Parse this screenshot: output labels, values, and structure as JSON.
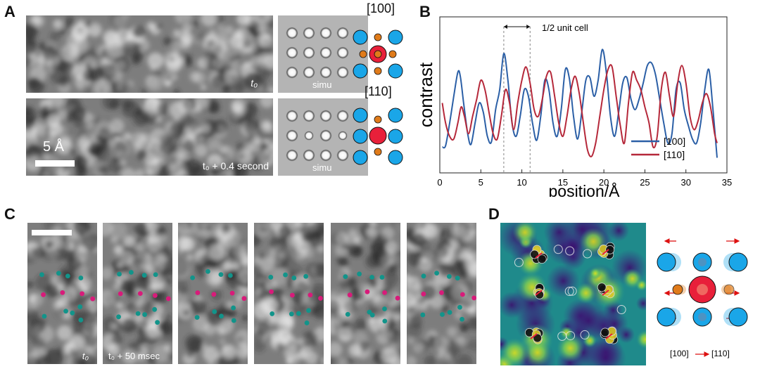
{
  "figure": {
    "panel_a": {
      "letter": "A",
      "top_time": "t₀",
      "bottom_time": "t₀ + 0.4 second",
      "scale_label": "5 Å",
      "sim_label_top": "simu",
      "sim_label_bottom": "simu",
      "zone_top": "[100]",
      "zone_bottom": "[110]"
    },
    "panel_b": {
      "letter": "B",
      "annotation": "1/2 unit cell",
      "ylabel": "contrast",
      "xlabel": "position/Å",
      "legend": [
        "[100]",
        "[110]"
      ]
    },
    "panel_c": {
      "letter": "C",
      "frame_labels": [
        "t₀",
        "t₀ + 50 msec"
      ]
    },
    "panel_d": {
      "letter": "D",
      "transition_from": "[100]",
      "transition_to": "[110]"
    },
    "colors": {
      "series_100": "#2b5fa6",
      "series_110": "#b5283a",
      "cyan_atom": "#1aa6e8",
      "red_atom": "#e8203a",
      "orange_atom": "#e07b1a",
      "teal_dot": "#12948a",
      "magenta_dot": "#d81b7a"
    }
  },
  "chart_data": {
    "type": "line",
    "title": "",
    "xlabel": "position/Å",
    "ylabel": "contrast",
    "xlim": [
      0,
      35
    ],
    "xticks": [
      0,
      5,
      10,
      15,
      20,
      25,
      30,
      35
    ],
    "yticks_shown": false,
    "annotation": {
      "text": "1/2 unit cell",
      "x_start": 7.8,
      "x_end": 11.0
    },
    "legend_position": "bottom-right",
    "series": [
      {
        "name": "[100]",
        "x": [
          0.3,
          0.7,
          1.2,
          1.7,
          2.2,
          2.5,
          2.9,
          3.4,
          3.8,
          4.3,
          4.8,
          5.3,
          5.8,
          6.3,
          6.8,
          7.3,
          7.8,
          8.3,
          8.8,
          9.3,
          9.8,
          10.3,
          10.8,
          11.3,
          11.8,
          12.3,
          12.8,
          13.3,
          13.8,
          14.3,
          14.8,
          15.3,
          15.8,
          16.3,
          16.8,
          17.3,
          17.8,
          18.3,
          18.8,
          19.3,
          19.8,
          20.3,
          20.8,
          21.3,
          21.8,
          22.3,
          22.8,
          23.3,
          23.8,
          24.3,
          24.8,
          25.3,
          25.8,
          26.3,
          26.8,
          27.3,
          27.8,
          28.3,
          28.8,
          29.3,
          29.8,
          30.3,
          30.8,
          31.3,
          31.8,
          32.3,
          32.8,
          33.3,
          33.8
        ],
        "y": [
          0.12,
          0.13,
          0.3,
          0.5,
          0.68,
          0.65,
          0.45,
          0.22,
          0.14,
          0.3,
          0.45,
          0.38,
          0.2,
          0.16,
          0.4,
          0.55,
          0.82,
          0.62,
          0.3,
          0.2,
          0.35,
          0.55,
          0.5,
          0.3,
          0.17,
          0.35,
          0.62,
          0.55,
          0.3,
          0.2,
          0.4,
          0.7,
          0.63,
          0.35,
          0.18,
          0.38,
          0.62,
          0.64,
          0.5,
          0.62,
          0.85,
          0.68,
          0.35,
          0.2,
          0.38,
          0.6,
          0.64,
          0.48,
          0.4,
          0.48,
          0.6,
          0.73,
          0.75,
          0.66,
          0.48,
          0.3,
          0.15,
          0.22,
          0.55,
          0.6,
          0.4,
          0.28,
          0.18,
          0.15,
          0.3,
          0.55,
          0.7,
          0.4,
          0.04
        ]
      },
      {
        "name": "[110]",
        "x": [
          0.3,
          0.7,
          1.2,
          1.7,
          2.2,
          2.6,
          3.0,
          3.5,
          4.0,
          4.5,
          5.0,
          5.5,
          6.0,
          6.5,
          7.0,
          7.5,
          8.0,
          8.5,
          9.0,
          9.5,
          10.0,
          10.5,
          11.0,
          11.5,
          12.0,
          12.5,
          13.0,
          13.5,
          14.0,
          14.5,
          15.0,
          15.5,
          16.0,
          16.5,
          17.0,
          17.5,
          18.0,
          18.5,
          19.0,
          19.5,
          20.0,
          20.5,
          21.0,
          21.5,
          22.0,
          22.5,
          23.0,
          23.5,
          24.0,
          24.5,
          25.0,
          25.5,
          26.0,
          26.5,
          27.0,
          27.5,
          28.0,
          28.5,
          29.0,
          29.5,
          30.0,
          30.5,
          31.0,
          31.5,
          32.0,
          32.5,
          33.0,
          33.5,
          33.8
        ],
        "y": [
          0.45,
          0.3,
          0.2,
          0.18,
          0.3,
          0.42,
          0.35,
          0.22,
          0.35,
          0.48,
          0.62,
          0.55,
          0.38,
          0.22,
          0.18,
          0.35,
          0.55,
          0.45,
          0.25,
          0.45,
          0.62,
          0.72,
          0.6,
          0.4,
          0.35,
          0.48,
          0.65,
          0.68,
          0.5,
          0.3,
          0.2,
          0.35,
          0.55,
          0.65,
          0.52,
          0.3,
          0.1,
          0.05,
          0.15,
          0.35,
          0.55,
          0.7,
          0.72,
          0.5,
          0.28,
          0.15,
          0.45,
          0.68,
          0.62,
          0.55,
          0.42,
          0.3,
          0.12,
          0.2,
          0.55,
          0.68,
          0.5,
          0.35,
          0.6,
          0.73,
          0.6,
          0.35,
          0.25,
          0.32,
          0.45,
          0.52,
          0.42,
          0.22,
          0.15
        ]
      }
    ]
  }
}
